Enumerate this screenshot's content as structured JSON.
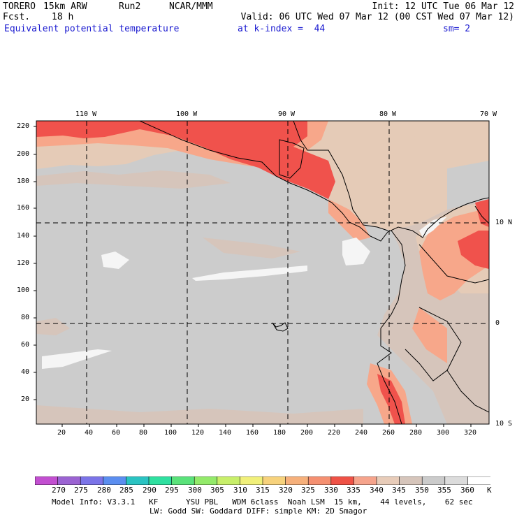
{
  "header": {
    "model": "TORERO",
    "resolution": "15km ARW",
    "run": "Run2",
    "org": "NCAR/MMM",
    "init": "Init: 12 UTC Tue 06 Mar 12",
    "fcst_label": "Fcst.",
    "fcst_value": "18 h",
    "valid": "Valid: 06 UTC Wed 07 Mar 12 (00 CST Wed 07 Mar 12)",
    "field": "Equivalent potential temperature",
    "level": "at k-index =  44",
    "smoothing": "sm= 2"
  },
  "map": {
    "lon_labels": [
      "110 W",
      "100 W",
      "90 W",
      "80 W",
      "70 W"
    ],
    "lat_labels": [
      "10 N",
      "0",
      "10 S"
    ],
    "y_ticks": [
      "220",
      "200",
      "180",
      "160",
      "140",
      "120",
      "100",
      "80",
      "60",
      "40",
      "20"
    ],
    "x_ticks": [
      "20",
      "40",
      "60",
      "80",
      "100",
      "120",
      "140",
      "160",
      "180",
      "200",
      "220",
      "240",
      "260",
      "280",
      "300",
      "320"
    ],
    "colors": {
      "background": "#cccccc",
      "tan": "#e5cbb7",
      "taupe": "#d4c3b8",
      "salmon": "#f7a78a",
      "red": "#f0524c",
      "white": "#f5f5f5"
    }
  },
  "colorbar": {
    "values": [
      "270",
      "275",
      "280",
      "285",
      "290",
      "295",
      "300",
      "305",
      "310",
      "315",
      "320",
      "325",
      "330",
      "335",
      "340",
      "345",
      "350",
      "355",
      "360"
    ],
    "unit": "K",
    "colors": [
      "#c24fd0",
      "#9b63d2",
      "#7b74e8",
      "#5b8ef0",
      "#2ac3c2",
      "#2fe0a0",
      "#5ae27a",
      "#93ea6a",
      "#c8ef6a",
      "#f1f07a",
      "#f7d27c",
      "#f6b07b",
      "#f59071",
      "#ef5246",
      "#f6a48c",
      "#e8ccb9",
      "#d6c5bb",
      "#cbcbcb",
      "#dcdcdc",
      "#ffffff"
    ]
  },
  "footer": {
    "line1": "Model Info: V3.3.1   KF      YSU PBL   WDM 6class  Noah LSM  15 km,    44 levels,    62 sec",
    "line2": "LW: Godd SW: Goddard DIFF: simple KM: 2D Smagor"
  }
}
